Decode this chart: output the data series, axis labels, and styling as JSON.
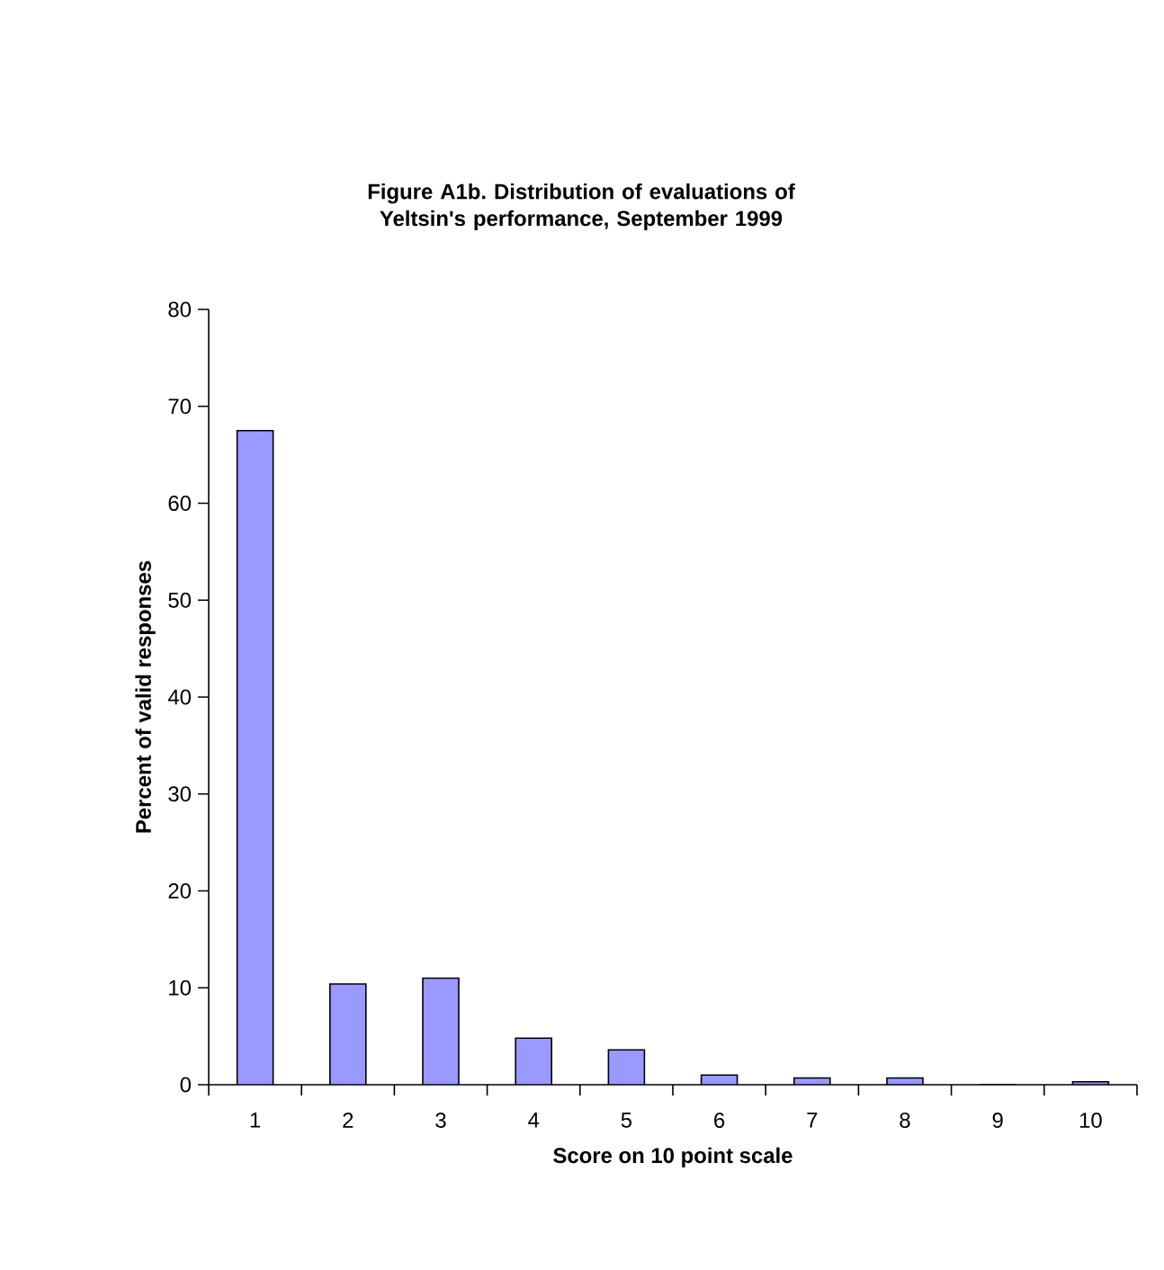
{
  "chart_data": {
    "type": "bar",
    "title": "Figure A1b. Distribution of evaluations of Yeltsin's performance, September 1999",
    "xlabel": "Score on 10 point scale",
    "ylabel": "Percent of valid responses",
    "categories": [
      "1",
      "2",
      "3",
      "4",
      "5",
      "6",
      "7",
      "8",
      "9",
      "10"
    ],
    "values": [
      67.5,
      10.4,
      11.0,
      4.8,
      3.6,
      1.0,
      0.7,
      0.7,
      0,
      0.3
    ],
    "color": "#9999ff",
    "ylim": [
      0,
      80
    ],
    "yticks": [
      0,
      10,
      20,
      30,
      40,
      50,
      60,
      70,
      80
    ],
    "grid": false
  }
}
